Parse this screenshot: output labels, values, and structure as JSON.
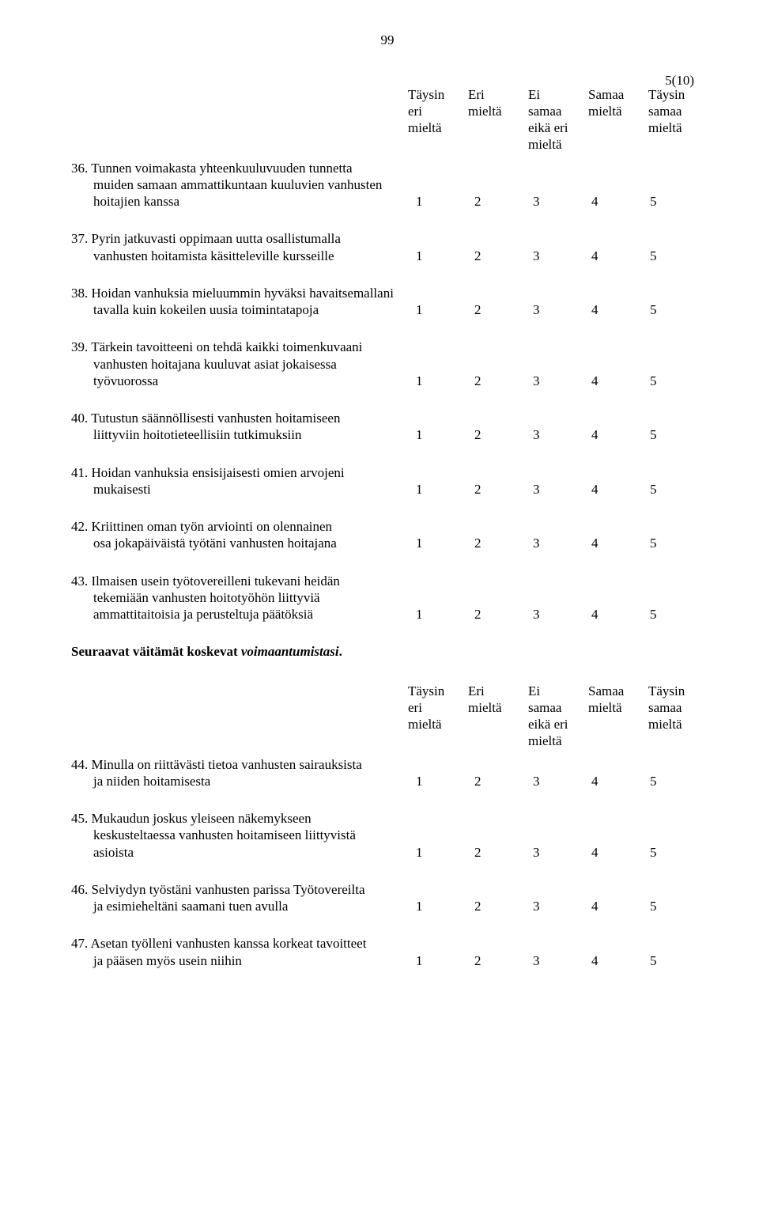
{
  "page": {
    "number": "99",
    "top_right": "5(10)"
  },
  "scale_header": {
    "cols": [
      "Täysin\neri\nmieltä",
      "Eri\nmieltä",
      "Ei\nsamaa\neikä eri\nmieltä",
      "Samaa\nmieltä",
      "Täysin\nsamaa\nmieltä"
    ]
  },
  "scale_nums": [
    "1",
    "2",
    "3",
    "4",
    "5"
  ],
  "items_a": [
    {
      "n": "36.",
      "lines": [
        "Tunnen voimakasta yhteenkuuluvuuden tunnetta",
        "muiden samaan ammattikuntaan kuuluvien vanhusten",
        "hoitajien kanssa"
      ]
    },
    {
      "n": "37.",
      "lines": [
        "Pyrin jatkuvasti oppimaan uutta osallistumalla",
        "vanhusten hoitamista käsitteleville kursseille"
      ]
    },
    {
      "n": "38.",
      "lines": [
        "Hoidan vanhuksia mieluummin hyväksi havaitsemallani",
        "tavalla kuin kokeilen uusia toimintatapoja"
      ]
    },
    {
      "n": "39.",
      "lines": [
        "Tärkein tavoitteeni on tehdä kaikki toimenkuvaani",
        "vanhusten hoitajana kuuluvat asiat jokaisessa",
        "työvuorossa"
      ]
    },
    {
      "n": "40.",
      "lines": [
        "Tutustun säännöllisesti vanhusten hoitamiseen",
        "liittyviin hoitotieteellisiin tutkimuksiin"
      ]
    },
    {
      "n": "41.",
      "lines": [
        "Hoidan vanhuksia ensisijaisesti omien arvojeni",
        "mukaisesti"
      ]
    },
    {
      "n": "42.",
      "lines": [
        "Kriittinen oman työn arviointi on olennainen",
        "osa jokapäiväistä työtäni vanhusten hoitajana"
      ]
    },
    {
      "n": "43.",
      "lines": [
        "Ilmaisen usein työtovereilleni tukevani heidän",
        "tekemiään vanhusten hoitotyöhön liittyviä",
        "ammattitaitoisia ja perusteltuja päätöksiä"
      ]
    }
  ],
  "section_b": {
    "prefix": "Seuraavat väitämät koskevat ",
    "italic": "voimaantumistasi",
    "suffix": "."
  },
  "items_b": [
    {
      "n": "44.",
      "lines": [
        "Minulla on riittävästi tietoa vanhusten sairauksista",
        "ja niiden hoitamisesta"
      ]
    },
    {
      "n": "45.",
      "lines": [
        "Mukaudun joskus yleiseen näkemykseen",
        "keskusteltaessa vanhusten hoitamiseen liittyvistä",
        "asioista"
      ]
    },
    {
      "n": "46.",
      "lines": [
        "Selviydyn työstäni vanhusten parissa Työtovereilta",
        "ja esimieheltäni saamani tuen avulla"
      ]
    },
    {
      "n": "47.",
      "lines": [
        "Asetan työlleni vanhusten kanssa korkeat tavoitteet",
        "ja pääsen myös usein niihin"
      ]
    }
  ]
}
